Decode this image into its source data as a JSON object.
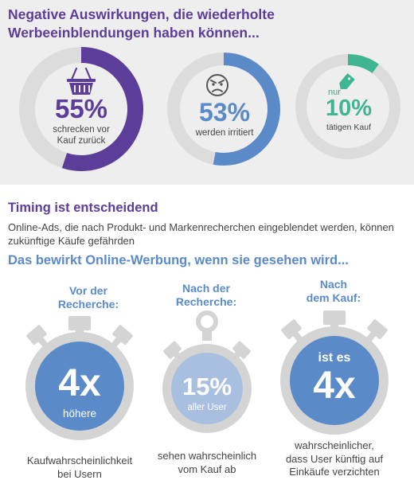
{
  "colors": {
    "purple": "#5c3d99",
    "blue": "#5b8ac8",
    "teal": "#3fb592",
    "ring_gray": "#dcdcdc",
    "stopwatch_gray": "#d4d4d4",
    "stopwatch_light": "#a9bfe0"
  },
  "headline": "Negative Auswirkungen, die wiederholte Werbeeinblendungen haben können...",
  "chart_data": {
    "type": "pie",
    "title": "Negative Auswirkungen, die wiederholte Werbeeinblendungen haben können...",
    "items": [
      {
        "value": 55,
        "pct_label": "55%",
        "text_lines": [
          "schrecken vor",
          "Kauf zurück"
        ],
        "icon": "shopping-basket-icon",
        "color": "#5c3d99"
      },
      {
        "value": 53,
        "pct_label": "53%",
        "text_lines": [
          "werden irritiert"
        ],
        "icon": "angry-face-icon",
        "color": "#5b8ac8"
      },
      {
        "value": 10,
        "pct_label": "10%",
        "prefix": "nur",
        "text_lines": [
          "tätigen Kauf"
        ],
        "icon": "price-tag-icon",
        "color": "#3fb592"
      }
    ]
  },
  "timing": {
    "title": "Timing ist entscheidend",
    "body": "Online-Ads, die nach Produkt- und Markenrecherchen eingeblendet werden, können zukünftige Käufe gefährden"
  },
  "effects": {
    "title": "Das bewirkt Online-Werbung, wenn sie gesehen wird...",
    "columns": [
      {
        "heading_lines": [
          "Vor der",
          "Recherche:"
        ],
        "top_text": "",
        "big": "4x",
        "small": "höhere",
        "bottom_lines": [
          "Kaufwahrscheinlichkeit",
          "bei Usern"
        ]
      },
      {
        "heading_lines": [
          "Nach der",
          "Recherche:"
        ],
        "top_text": "",
        "big": "15%",
        "small": "aller User",
        "bottom_lines": [
          "sehen wahrscheinlich",
          "vom Kauf ab"
        ]
      },
      {
        "heading_lines": [
          "Nach",
          "dem Kauf:"
        ],
        "top_text": "ist es",
        "big": "4x",
        "small": "",
        "bottom_lines": [
          "wahrscheinlicher,",
          "dass User künftig auf",
          "Einkäufe verzichten"
        ]
      }
    ]
  }
}
